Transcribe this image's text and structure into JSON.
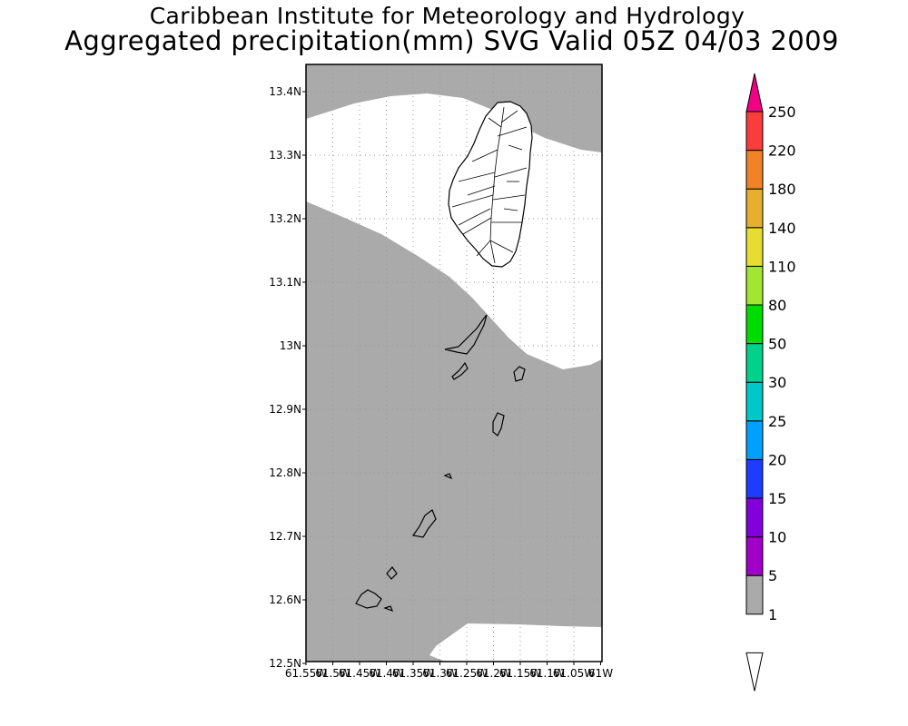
{
  "title": {
    "line1": "Caribbean Institute for Meteorology and Hydrology",
    "line2": "Aggregated precipitation(mm) SVG Valid 05Z 04/03 2009"
  },
  "map": {
    "lat_ticks": [
      "13.4N",
      "13.3N",
      "13.2N",
      "13.1N",
      "13N",
      "12.9N",
      "12.8N",
      "12.7N",
      "12.6N",
      "12.5N"
    ],
    "lon_ticks": [
      "61.55W",
      "61.5W",
      "61.45W",
      "61.4W",
      "61.35W",
      "61.3W",
      "61.25W",
      "61.2W",
      "61.15W",
      "61.1W",
      "61.05W",
      "61W"
    ],
    "lat_range": [
      12.5,
      13.44
    ],
    "lon_range": [
      61.55,
      61.0
    ],
    "grid": true,
    "colors": {
      "rain_1_5mm": "#aaaaaa",
      "no_rain": "#ffffff",
      "coastline": "#000000",
      "grid": "#999999"
    }
  },
  "legend": {
    "labels": [
      "1",
      "5",
      "10",
      "15",
      "20",
      "25",
      "30",
      "50",
      "80",
      "110",
      "140",
      "180",
      "220",
      "250"
    ],
    "colors": [
      "#aaaaaa",
      "#a000c8",
      "#8200dc",
      "#1e3cff",
      "#00a0ff",
      "#00c8c8",
      "#00d28c",
      "#00dc00",
      "#a0e632",
      "#e6dc32",
      "#e6af2d",
      "#f08228",
      "#fa3c3c",
      "#f00082"
    ]
  }
}
